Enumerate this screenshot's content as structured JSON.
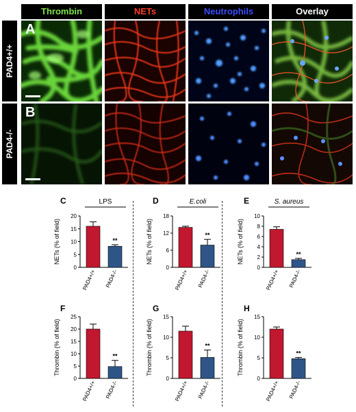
{
  "columns": [
    "Thrombin",
    "NETs",
    "Neutrophils",
    "Overlay"
  ],
  "rows": [
    {
      "genotype": "PAD4+/+",
      "letter": "A"
    },
    {
      "genotype": "PAD4-/-",
      "letter": "B"
    }
  ],
  "colors": {
    "wt_bar": "#c1182f",
    "ko_bar": "#2f5588",
    "thrombin": "#7fe34a",
    "nets": "#ff3b2a",
    "neutrophils": "#3b4dff"
  },
  "chart_data": [
    {
      "id": "C",
      "type": "bar",
      "title": "LPS",
      "title_italic": false,
      "ylabel": "NETs (% of field)",
      "categories": [
        "PAD4+/+",
        "PAD4-/-"
      ],
      "values": [
        16.0,
        8.2
      ],
      "errors": [
        1.7,
        0.6
      ],
      "ylim": [
        0,
        20
      ],
      "yticks": [
        0,
        5,
        10,
        15,
        20
      ],
      "significance": [
        "",
        "**"
      ]
    },
    {
      "id": "D",
      "type": "bar",
      "title": "E.coli",
      "title_italic": true,
      "ylabel": "NETs (% of field)",
      "categories": [
        "PAD4+/+",
        "PAD4-/-"
      ],
      "values": [
        14.0,
        7.8
      ],
      "errors": [
        0.4,
        2.0
      ],
      "ylim": [
        0,
        18
      ],
      "yticks": [
        0,
        6,
        12,
        18
      ],
      "significance": [
        "",
        "**"
      ]
    },
    {
      "id": "E",
      "type": "bar",
      "title": "S. aureus",
      "title_italic": true,
      "ylabel": "NETs (% of field)",
      "categories": [
        "PAD4+/+",
        "PAD4-/-"
      ],
      "values": [
        7.4,
        1.5
      ],
      "errors": [
        0.5,
        0.25
      ],
      "ylim": [
        0,
        10
      ],
      "yticks": [
        0,
        2,
        4,
        6,
        8,
        10
      ],
      "significance": [
        "",
        "**"
      ]
    },
    {
      "id": "F",
      "type": "bar",
      "title": "",
      "title_italic": false,
      "ylabel": "Thrombin (% of field)",
      "categories": [
        "PAD4+/+",
        "PAD4-/-"
      ],
      "values": [
        20.0,
        4.8
      ],
      "errors": [
        2.0,
        2.5
      ],
      "ylim": [
        0,
        25
      ],
      "yticks": [
        0,
        5,
        10,
        15,
        20,
        25
      ],
      "significance": [
        "",
        "**"
      ]
    },
    {
      "id": "G",
      "type": "bar",
      "title": "",
      "title_italic": false,
      "ylabel": "Thrombin (% of field)",
      "categories": [
        "PAD4+/+",
        "PAD4-/-"
      ],
      "values": [
        11.5,
        5.1
      ],
      "errors": [
        1.2,
        1.8
      ],
      "ylim": [
        0,
        15
      ],
      "yticks": [
        0,
        5,
        10,
        15
      ],
      "significance": [
        "",
        "**"
      ]
    },
    {
      "id": "H",
      "type": "bar",
      "title": "",
      "title_italic": false,
      "ylabel": "Thrombin (% of field)",
      "categories": [
        "PAD4+/+",
        "PAD4-/-"
      ],
      "values": [
        12.0,
        4.8
      ],
      "errors": [
        0.5,
        0.3
      ],
      "ylim": [
        0,
        15
      ],
      "yticks": [
        0,
        5,
        10,
        15
      ],
      "significance": [
        "",
        "**"
      ]
    }
  ]
}
